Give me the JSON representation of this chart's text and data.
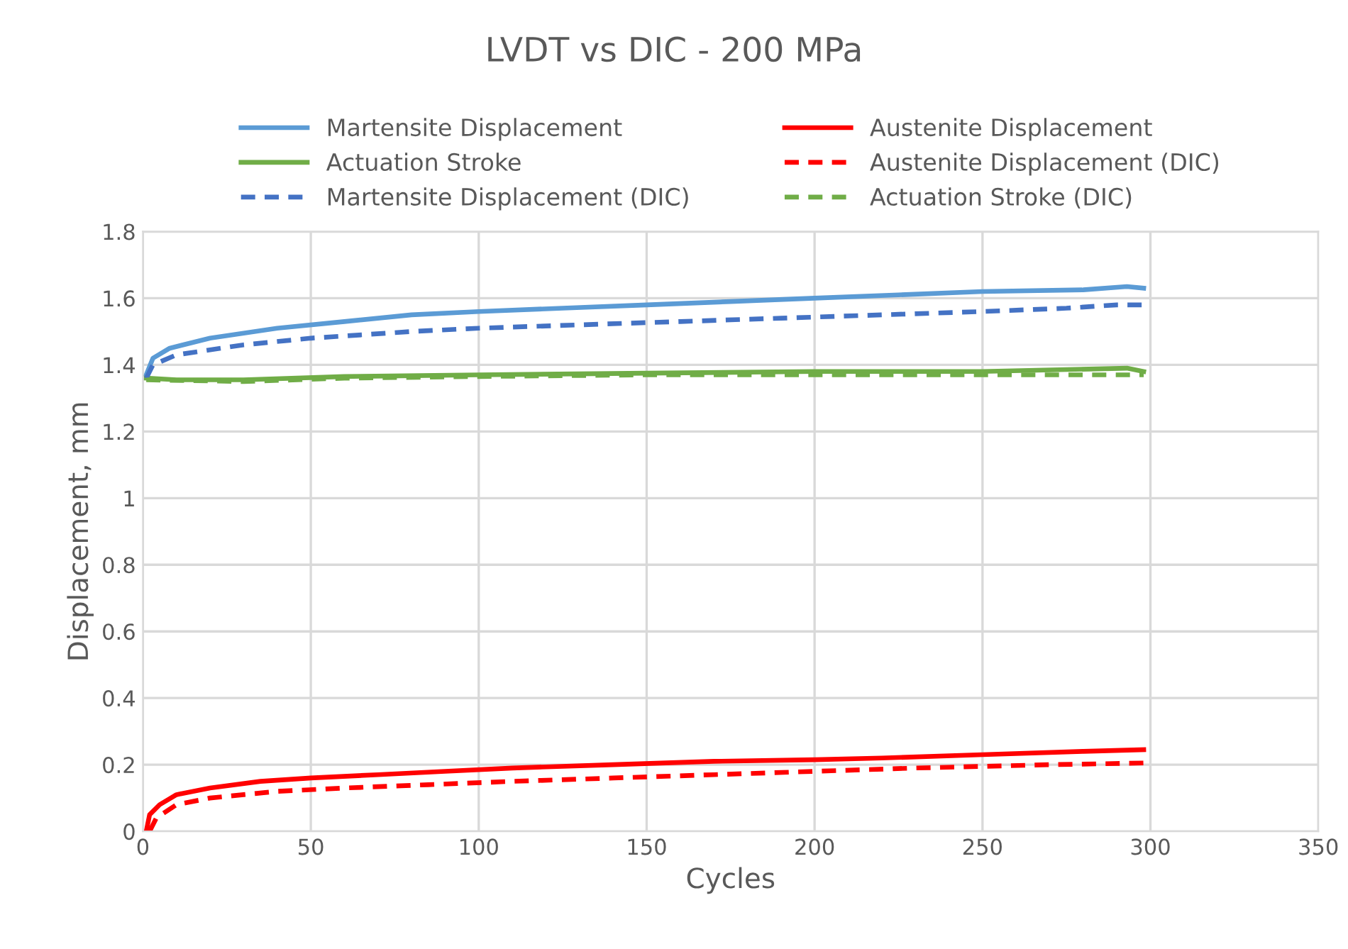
{
  "chart_data": {
    "type": "line",
    "title": "LVDT vs DIC - 200 MPa",
    "xlabel": "Cycles",
    "ylabel": "Displacement, mm",
    "xlim": [
      0,
      350
    ],
    "xticks": [
      0,
      50,
      100,
      150,
      200,
      250,
      300,
      350
    ],
    "ylim": [
      0,
      1.8
    ],
    "yticks": [
      0,
      0.2,
      0.4,
      0.6,
      0.8,
      1,
      1.2,
      1.4,
      1.6,
      1.8
    ],
    "grid": true,
    "legend": "top",
    "marker": "none",
    "series": [
      {
        "name": "Martensite Displacement",
        "color": "#5b9bd5",
        "line_style": "solid",
        "x": [
          1,
          3,
          8,
          20,
          40,
          60,
          80,
          100,
          125,
          150,
          175,
          200,
          225,
          250,
          280,
          293,
          298
        ],
        "values": [
          1.37,
          1.42,
          1.45,
          1.48,
          1.51,
          1.53,
          1.55,
          1.56,
          1.57,
          1.58,
          1.59,
          1.6,
          1.61,
          1.62,
          1.625,
          1.635,
          1.63
        ]
      },
      {
        "name": "Austenite Displacement",
        "color": "#ff0000",
        "line_style": "solid",
        "x": [
          1,
          2,
          5,
          10,
          20,
          35,
          50,
          70,
          90,
          110,
          140,
          170,
          200,
          220,
          250,
          280,
          298
        ],
        "values": [
          0.0,
          0.05,
          0.08,
          0.11,
          0.13,
          0.15,
          0.16,
          0.17,
          0.18,
          0.19,
          0.2,
          0.21,
          0.215,
          0.22,
          0.23,
          0.24,
          0.245
        ]
      },
      {
        "name": "Actuation Stroke",
        "color": "#70ad47",
        "line_style": "solid",
        "x": [
          1,
          10,
          30,
          60,
          100,
          150,
          200,
          250,
          293,
          298
        ],
        "values": [
          1.36,
          1.355,
          1.355,
          1.365,
          1.37,
          1.375,
          1.38,
          1.38,
          1.39,
          1.38
        ]
      },
      {
        "name": "Austenite Displacement (DIC)",
        "color": "#ff0000",
        "line_style": "dashed",
        "x": [
          2,
          4,
          10,
          20,
          40,
          60,
          85,
          110,
          140,
          170,
          200,
          230,
          270,
          298
        ],
        "values": [
          0.0,
          0.04,
          0.08,
          0.1,
          0.12,
          0.13,
          0.14,
          0.15,
          0.16,
          0.17,
          0.18,
          0.19,
          0.2,
          0.205
        ]
      },
      {
        "name": "Martensite Displacement (DIC)",
        "color": "#4472c4",
        "line_style": "dashed",
        "x": [
          1,
          3,
          10,
          30,
          50,
          80,
          100,
          130,
          160,
          190,
          220,
          250,
          275,
          290,
          298
        ],
        "values": [
          1.36,
          1.4,
          1.43,
          1.46,
          1.48,
          1.5,
          1.51,
          1.52,
          1.53,
          1.54,
          1.55,
          1.56,
          1.57,
          1.58,
          1.58
        ]
      },
      {
        "name": "Actuation Stroke (DIC)",
        "color": "#70ad47",
        "line_style": "dashed",
        "x": [
          1,
          30,
          60,
          100,
          150,
          200,
          250,
          298
        ],
        "values": [
          1.355,
          1.35,
          1.36,
          1.365,
          1.37,
          1.37,
          1.37,
          1.37
        ]
      }
    ]
  }
}
